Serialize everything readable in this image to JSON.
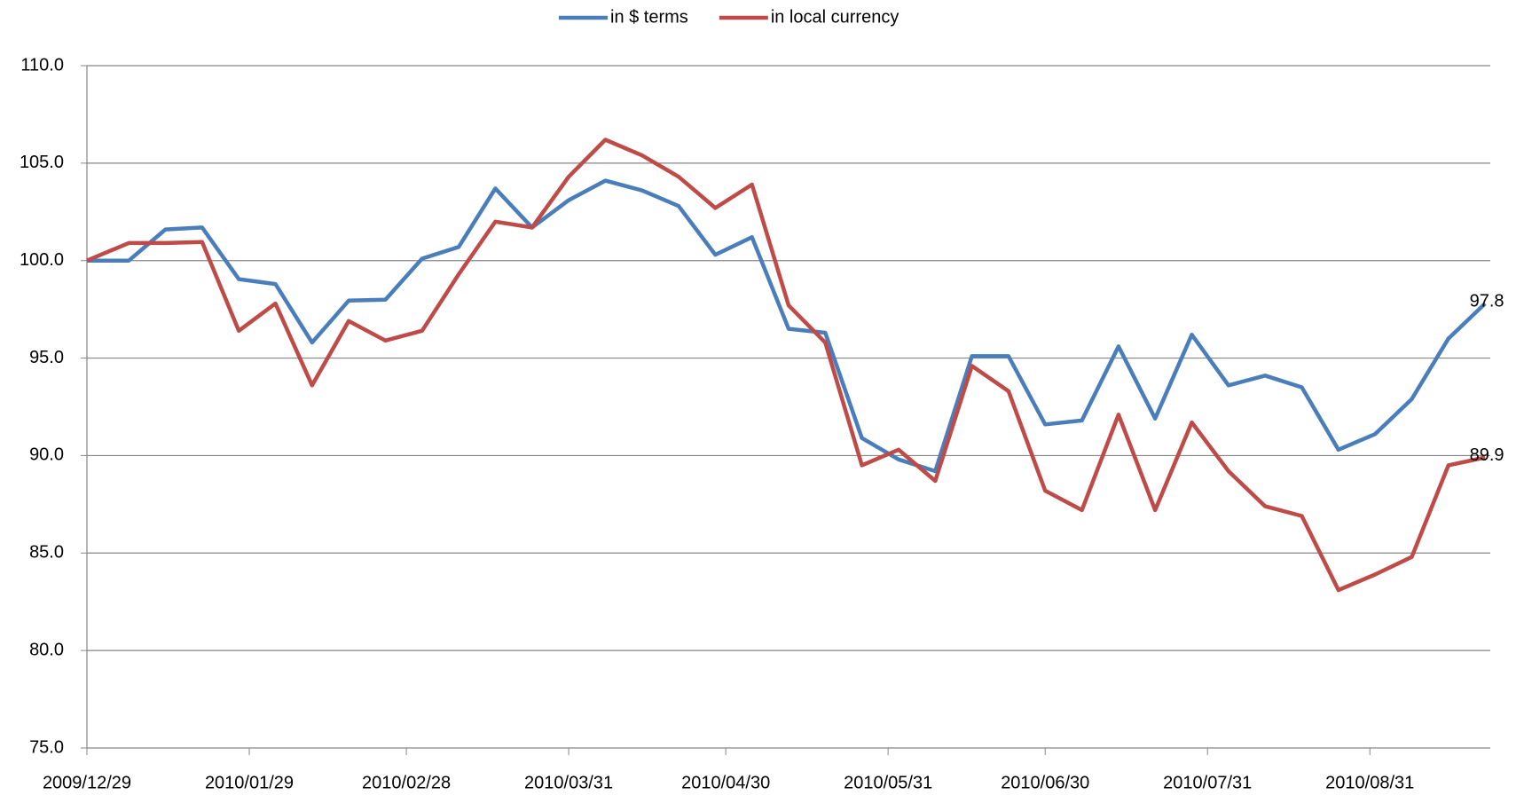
{
  "chart_data": {
    "type": "line",
    "x": [
      "2009/12/29",
      "2010/01/06",
      "2010/01/13",
      "2010/01/20",
      "2010/01/27",
      "2010/02/03",
      "2010/02/10",
      "2010/02/17",
      "2010/02/24",
      "2010/03/03",
      "2010/03/10",
      "2010/03/17",
      "2010/03/24",
      "2010/03/31",
      "2010/04/07",
      "2010/04/14",
      "2010/04/21",
      "2010/04/28",
      "2010/05/05",
      "2010/05/12",
      "2010/05/19",
      "2010/05/26",
      "2010/06/02",
      "2010/06/09",
      "2010/06/16",
      "2010/06/23",
      "2010/06/30",
      "2010/07/07",
      "2010/07/14",
      "2010/07/21",
      "2010/07/28",
      "2010/08/04",
      "2010/08/11",
      "2010/08/18",
      "2010/08/25",
      "2010/09/01",
      "2010/09/08",
      "2010/09/15",
      "2010/09/22"
    ],
    "series": [
      {
        "name": "in $ terms",
        "color": "#4a7ebb",
        "values": [
          100.0,
          100.0,
          101.6,
          101.7,
          99.05,
          98.8,
          95.8,
          97.95,
          98.0,
          100.1,
          100.7,
          103.7,
          101.7,
          103.1,
          104.1,
          103.6,
          102.8,
          100.3,
          101.2,
          96.5,
          96.3,
          90.9,
          89.8,
          89.2,
          95.1,
          95.1,
          91.6,
          91.8,
          95.6,
          91.9,
          96.2,
          93.6,
          94.1,
          93.5,
          90.3,
          91.1,
          92.9,
          96.0,
          97.8
        ],
        "end_label": true
      },
      {
        "name": "in local currency",
        "color": "#be4b48",
        "values": [
          100.0,
          100.9,
          100.9,
          100.95,
          96.4,
          97.8,
          93.6,
          96.9,
          95.9,
          96.4,
          99.3,
          102.0,
          101.7,
          104.3,
          106.2,
          105.4,
          104.3,
          102.7,
          103.9,
          97.7,
          95.8,
          89.5,
          90.3,
          88.7,
          94.6,
          93.3,
          88.2,
          87.2,
          92.1,
          87.2,
          91.7,
          89.2,
          87.4,
          86.9,
          83.1,
          83.9,
          84.8,
          89.5,
          89.9
        ],
        "end_label": true
      }
    ],
    "xlim": [
      "2009/12/29",
      "2010/09/23"
    ],
    "xticks": [
      "2009/12/29",
      "2010/01/29",
      "2010/02/28",
      "2010/03/31",
      "2010/04/30",
      "2010/05/31",
      "2010/06/30",
      "2010/07/31",
      "2010/08/31"
    ],
    "ylim": [
      75,
      110
    ],
    "yticks": [
      {
        "value": 75,
        "label": "75.0"
      },
      {
        "value": 80,
        "label": "80.0"
      },
      {
        "value": 85,
        "label": "85.0"
      },
      {
        "value": 90,
        "label": "90.0"
      },
      {
        "value": 95,
        "label": "95.0"
      },
      {
        "value": 100,
        "label": "100.0"
      },
      {
        "value": 105,
        "label": "105.0"
      },
      {
        "value": 110,
        "label": "110.0"
      }
    ],
    "grid": true,
    "legend": "top"
  }
}
